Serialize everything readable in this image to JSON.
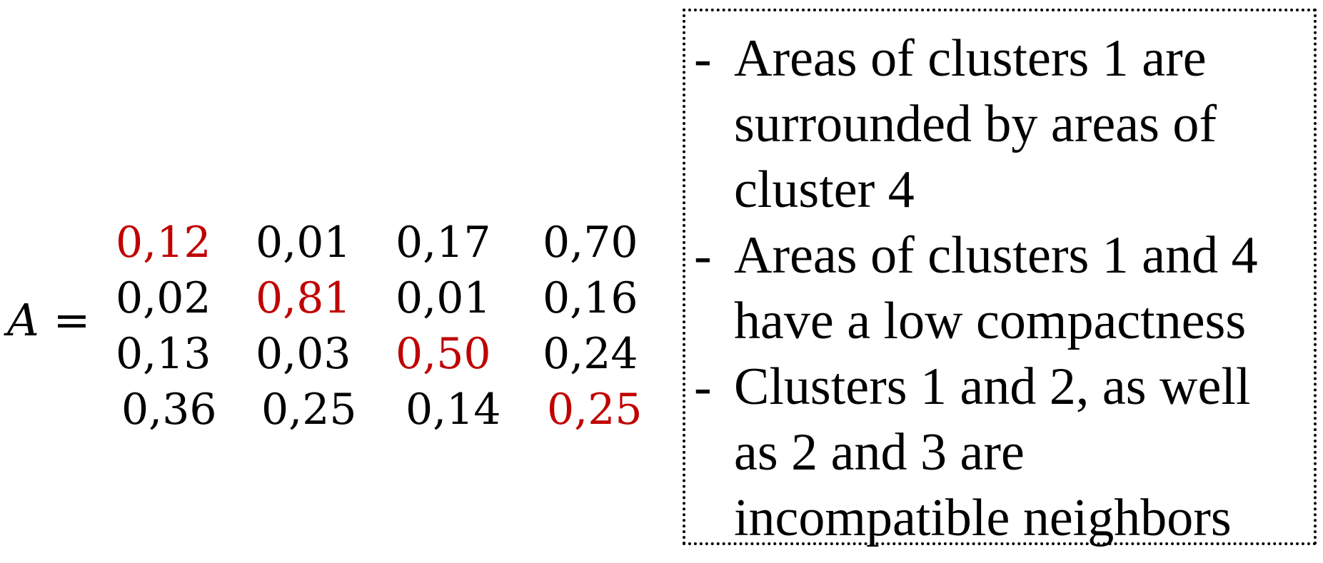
{
  "equation": {
    "variable": "A",
    "equals": "="
  },
  "matrix": {
    "highlight_color": "#c00000",
    "text_color": "#000000",
    "rows": [
      [
        "0,12",
        "0,01",
        "0,17",
        "0,70"
      ],
      [
        "0,02",
        "0,81",
        "0,01",
        "0,16"
      ],
      [
        "0,13",
        "0,03",
        "0,50",
        "0,24"
      ],
      [
        "0,36",
        "0,25",
        "0,14",
        "0,25"
      ]
    ]
  },
  "notes": {
    "bullet": "-",
    "items": [
      "Areas of clusters 1 are surrounded by areas of cluster 4",
      "Areas of clusters 1 and 4 have a low compactness",
      "Clusters 1 and 2, as well as 2 and 3 are incompatible neighbors"
    ]
  }
}
